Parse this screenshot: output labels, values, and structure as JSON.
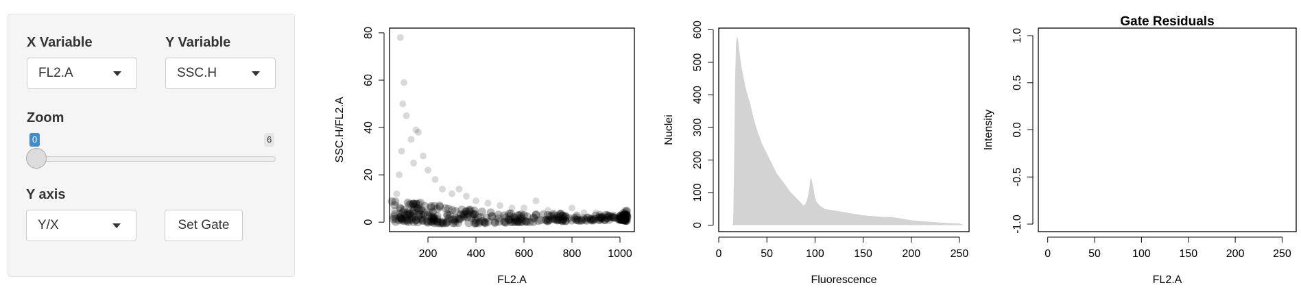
{
  "sidebar": {
    "x_variable": {
      "label": "X Variable",
      "value": "FL2.A"
    },
    "y_variable": {
      "label": "Y Variable",
      "value": "SSC.H"
    },
    "zoom": {
      "label": "Zoom",
      "value": 0,
      "min": 0,
      "max": 6,
      "min_label": "0",
      "max_label": "6"
    },
    "y_axis": {
      "label": "Y axis",
      "value": "Y/X"
    },
    "set_gate_label": "Set Gate"
  },
  "chart_data": [
    {
      "type": "scatter",
      "title": "",
      "xlabel": "FL2.A",
      "ylabel": "SSC.H/FL2.A",
      "xlim": [
        40,
        1060
      ],
      "ylim": [
        -4,
        82
      ],
      "xticks": [
        "200",
        "400",
        "600",
        "800",
        "1000"
      ],
      "yticks": [
        "0",
        "20",
        "40",
        "60",
        "80"
      ],
      "points": [
        [
          60,
          5
        ],
        [
          70,
          12
        ],
        [
          80,
          20
        ],
        [
          85,
          78
        ],
        [
          90,
          30
        ],
        [
          100,
          59
        ],
        [
          95,
          50
        ],
        [
          110,
          45
        ],
        [
          130,
          35
        ],
        [
          150,
          39
        ],
        [
          160,
          38
        ],
        [
          140,
          25
        ],
        [
          180,
          28
        ],
        [
          200,
          22
        ],
        [
          230,
          18
        ],
        [
          260,
          14
        ],
        [
          300,
          12
        ],
        [
          330,
          14
        ],
        [
          360,
          11
        ],
        [
          400,
          9
        ],
        [
          450,
          8
        ],
        [
          500,
          7
        ],
        [
          550,
          6
        ],
        [
          600,
          6
        ],
        [
          650,
          9
        ],
        [
          700,
          5
        ],
        [
          750,
          4
        ],
        [
          800,
          6
        ],
        [
          850,
          4
        ],
        [
          900,
          4
        ],
        [
          950,
          3
        ],
        [
          1000,
          3
        ],
        [
          1020,
          5
        ],
        [
          1020,
          3
        ],
        [
          1020,
          2
        ],
        [
          1020,
          1
        ]
      ],
      "dense_band": [
        [
          50,
          0,
          10
        ],
        [
          150,
          0,
          9
        ],
        [
          250,
          -0.5,
          7
        ],
        [
          400,
          -0.5,
          5
        ],
        [
          600,
          0,
          4
        ],
        [
          800,
          0.5,
          3.5
        ],
        [
          1000,
          1,
          3
        ],
        [
          1030,
          0.5,
          5
        ]
      ],
      "color": "#000000"
    },
    {
      "type": "area",
      "title": "",
      "xlabel": "Fluorescence",
      "ylabel": "Nuclei",
      "xlim": [
        0,
        260
      ],
      "ylim": [
        -20,
        605
      ],
      "xticks": [
        "0",
        "50",
        "100",
        "150",
        "200",
        "250"
      ],
      "yticks": [
        "0",
        "100",
        "200",
        "300",
        "400",
        "500",
        "600"
      ],
      "x": [
        14,
        15,
        16,
        17,
        18,
        19,
        20,
        22,
        24,
        26,
        28,
        30,
        33,
        36,
        40,
        45,
        50,
        55,
        60,
        65,
        70,
        75,
        80,
        85,
        88,
        90,
        92,
        94,
        95,
        96,
        98,
        100,
        102,
        105,
        110,
        120,
        130,
        140,
        150,
        160,
        170,
        180,
        190,
        200,
        210,
        220,
        230,
        240,
        250,
        255
      ],
      "values": [
        0,
        5,
        200,
        450,
        560,
        580,
        570,
        520,
        480,
        450,
        420,
        400,
        370,
        330,
        290,
        250,
        220,
        190,
        160,
        140,
        120,
        100,
        85,
        70,
        60,
        65,
        80,
        110,
        140,
        145,
        120,
        85,
        70,
        60,
        50,
        45,
        40,
        35,
        30,
        28,
        25,
        25,
        20,
        15,
        12,
        10,
        8,
        6,
        5,
        0
      ],
      "color": "#d3d3d3"
    },
    {
      "type": "line",
      "title": "Gate Residuals",
      "xlabel": "FL2.A",
      "ylabel": "Intensity",
      "xlim": [
        -10,
        265
      ],
      "ylim": [
        -1.08,
        1.08
      ],
      "xticks": [
        "0",
        "50",
        "100",
        "150",
        "200",
        "250"
      ],
      "yticks": [
        "-1.0",
        "-0.5",
        "0.0",
        "0.5",
        "1.0"
      ],
      "series": []
    }
  ]
}
